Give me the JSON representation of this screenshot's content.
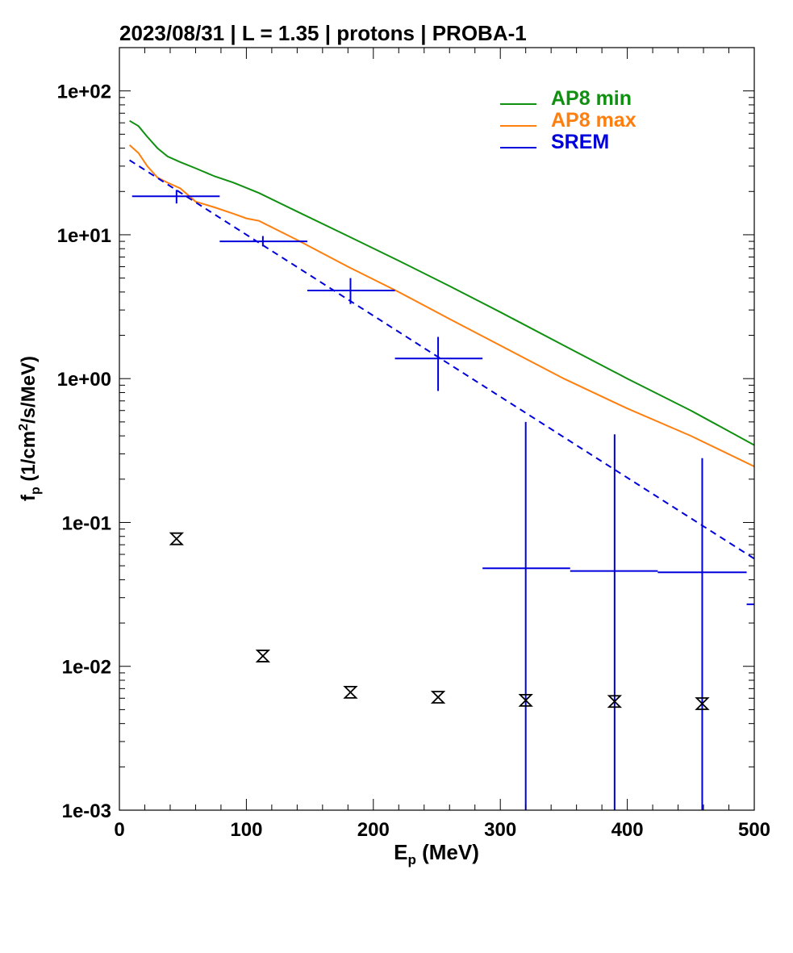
{
  "chart_data": {
    "type": "line",
    "title": "2023/08/31 | L = 1.35 | protons | PROBA-1",
    "xlabel": {
      "main": "E",
      "sub": "p",
      "rest": " (MeV)"
    },
    "ylabel": {
      "main": "f",
      "sub": "p",
      "pre": " (1/cm",
      "sup": "2",
      "post": "/s/MeV)"
    },
    "xlim": [
      0,
      500
    ],
    "ylim": [
      0.001,
      200
    ],
    "yscale": "log",
    "xticks": [
      0,
      100,
      200,
      300,
      400,
      500
    ],
    "xticklabels": [
      "0",
      "100",
      "200",
      "300",
      "400",
      "500"
    ],
    "yticks": [
      0.001,
      0.01,
      0.1,
      1,
      10,
      100
    ],
    "yticklabels": [
      "1e-03",
      "1e-02",
      "1e-01",
      "1e+00",
      "1e+01",
      "1e+02"
    ],
    "grid": false,
    "legend_position": "top-right",
    "colors": {
      "ap8min": "#109010",
      "ap8max": "#ff7f0e",
      "srem": "#0000dd",
      "background": "#000000",
      "axes": "#000000"
    },
    "series": [
      {
        "name": "AP8 min",
        "color": "#109010",
        "x": [
          8,
          15,
          22,
          30,
          38,
          48,
          60,
          75,
          90,
          110,
          140,
          180,
          220,
          260,
          300,
          350,
          400,
          450,
          500
        ],
        "y": [
          62,
          57,
          48,
          40,
          35,
          32,
          29,
          25.5,
          23,
          19.5,
          14.5,
          9.8,
          6.6,
          4.4,
          2.9,
          1.7,
          1.0,
          0.6,
          0.345
        ]
      },
      {
        "name": "AP8 max",
        "color": "#ff7f0e",
        "x": [
          8,
          15,
          22,
          30,
          38,
          48,
          60,
          75,
          90,
          100,
          110,
          140,
          180,
          220,
          260,
          300,
          350,
          400,
          450,
          500
        ],
        "y": [
          42,
          37,
          30,
          25,
          23,
          21,
          17,
          15.5,
          14,
          13,
          12.5,
          9.2,
          6.0,
          4.0,
          2.6,
          1.7,
          1.0,
          0.62,
          0.4,
          0.245
        ]
      }
    ],
    "srem": {
      "name": "SREM",
      "color": "#0000dd",
      "fit": {
        "x": [
          8,
          500
        ],
        "y": [
          33,
          0.056
        ]
      },
      "points": [
        {
          "x": 45,
          "xlo": 10,
          "xhi": 79,
          "y": 18.5,
          "ylo": 16.5,
          "yhi": 20.5
        },
        {
          "x": 113,
          "xlo": 79,
          "xhi": 148,
          "y": 9.0,
          "ylo": 8.3,
          "yhi": 9.8
        },
        {
          "x": 182,
          "xlo": 148,
          "xhi": 217,
          "y": 4.1,
          "ylo": 3.3,
          "yhi": 5.0
        },
        {
          "x": 251,
          "xlo": 217,
          "xhi": 286,
          "y": 1.38,
          "ylo": 0.82,
          "yhi": 1.95
        },
        {
          "x": 320,
          "xlo": 286,
          "xhi": 355,
          "y": 0.048,
          "ylo": 0.0008,
          "yhi": 0.5
        },
        {
          "x": 390,
          "xlo": 355,
          "xhi": 424,
          "y": 0.046,
          "ylo": 0.0008,
          "yhi": 0.41
        },
        {
          "x": 459,
          "xlo": 424,
          "xhi": 494,
          "y": 0.045,
          "ylo": 0.0008,
          "yhi": 0.28
        },
        {
          "x": 500,
          "xlo": 494,
          "xhi": 500,
          "y": 0.027,
          "ylo": 0.027,
          "yhi": 0.027
        }
      ]
    },
    "background_markers": {
      "symbol": "hourglass",
      "color": "#000000",
      "x": [
        45,
        113,
        182,
        251,
        320,
        390,
        459
      ],
      "y": [
        0.077,
        0.0118,
        0.0066,
        0.0061,
        0.0058,
        0.0057,
        0.0055
      ]
    }
  }
}
